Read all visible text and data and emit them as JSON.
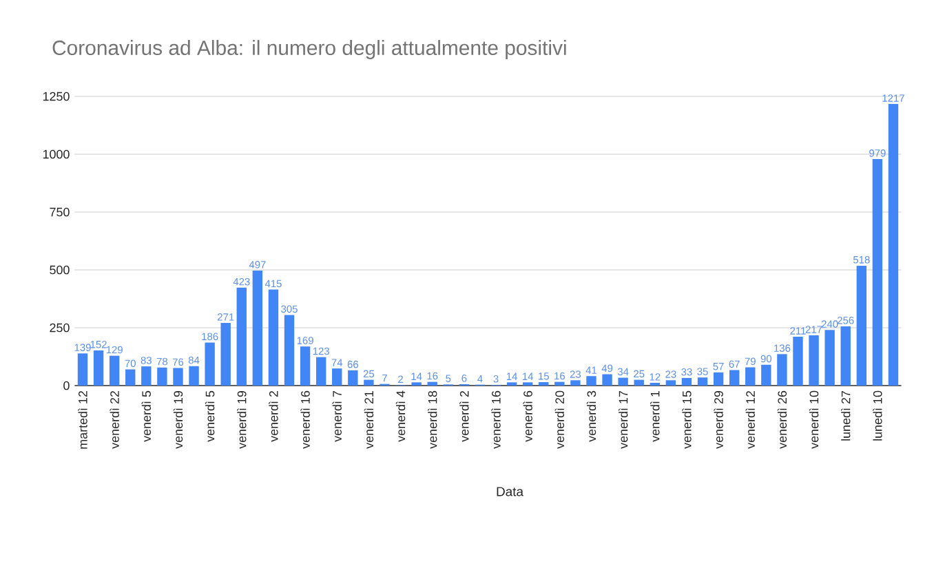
{
  "chart_data": {
    "type": "bar",
    "title": "Coronavirus ad Alba: il numero degli attualmente positivi",
    "xlabel": "Data",
    "categories": [
      "martedì 12",
      null,
      "venerdì 22",
      null,
      "venerdì 5",
      null,
      "venerdì 19",
      null,
      "venerdì 5",
      null,
      "venerdì 19",
      null,
      "venerdì 2",
      null,
      "venerdì 16",
      null,
      "venerdì 7",
      null,
      "venerdì 21",
      null,
      "venerdì 4",
      null,
      "venerdì 18",
      null,
      "venerdì 2",
      null,
      "venerdì 16",
      null,
      "venerdì 6",
      null,
      "venerdì 20",
      null,
      "venerdì 3",
      null,
      "venerdì 17",
      null,
      "venerdì 1",
      null,
      "venerdì 15",
      null,
      "venerdì 29",
      null,
      "venerdì 12",
      null,
      "venerdì 26",
      null,
      "venerdì 10",
      null,
      "lunedì 27",
      null,
      "lunedì 10",
      null
    ],
    "values": [
      139,
      152,
      129,
      70,
      83,
      78,
      76,
      84,
      186,
      271,
      423,
      497,
      415,
      305,
      169,
      123,
      74,
      66,
      25,
      7,
      2,
      14,
      16,
      5,
      6,
      4,
      3,
      14,
      14,
      15,
      16,
      23,
      41,
      49,
      34,
      25,
      12,
      23,
      33,
      35,
      57,
      67,
      79,
      90,
      136,
      211,
      217,
      240,
      256,
      518,
      979,
      1217
    ],
    "color": "#4285f4",
    "data_labels": true,
    "ylim": [
      0,
      1250
    ],
    "yticks": [
      0,
      250,
      500,
      750,
      1000,
      1250
    ],
    "grid": "y"
  }
}
